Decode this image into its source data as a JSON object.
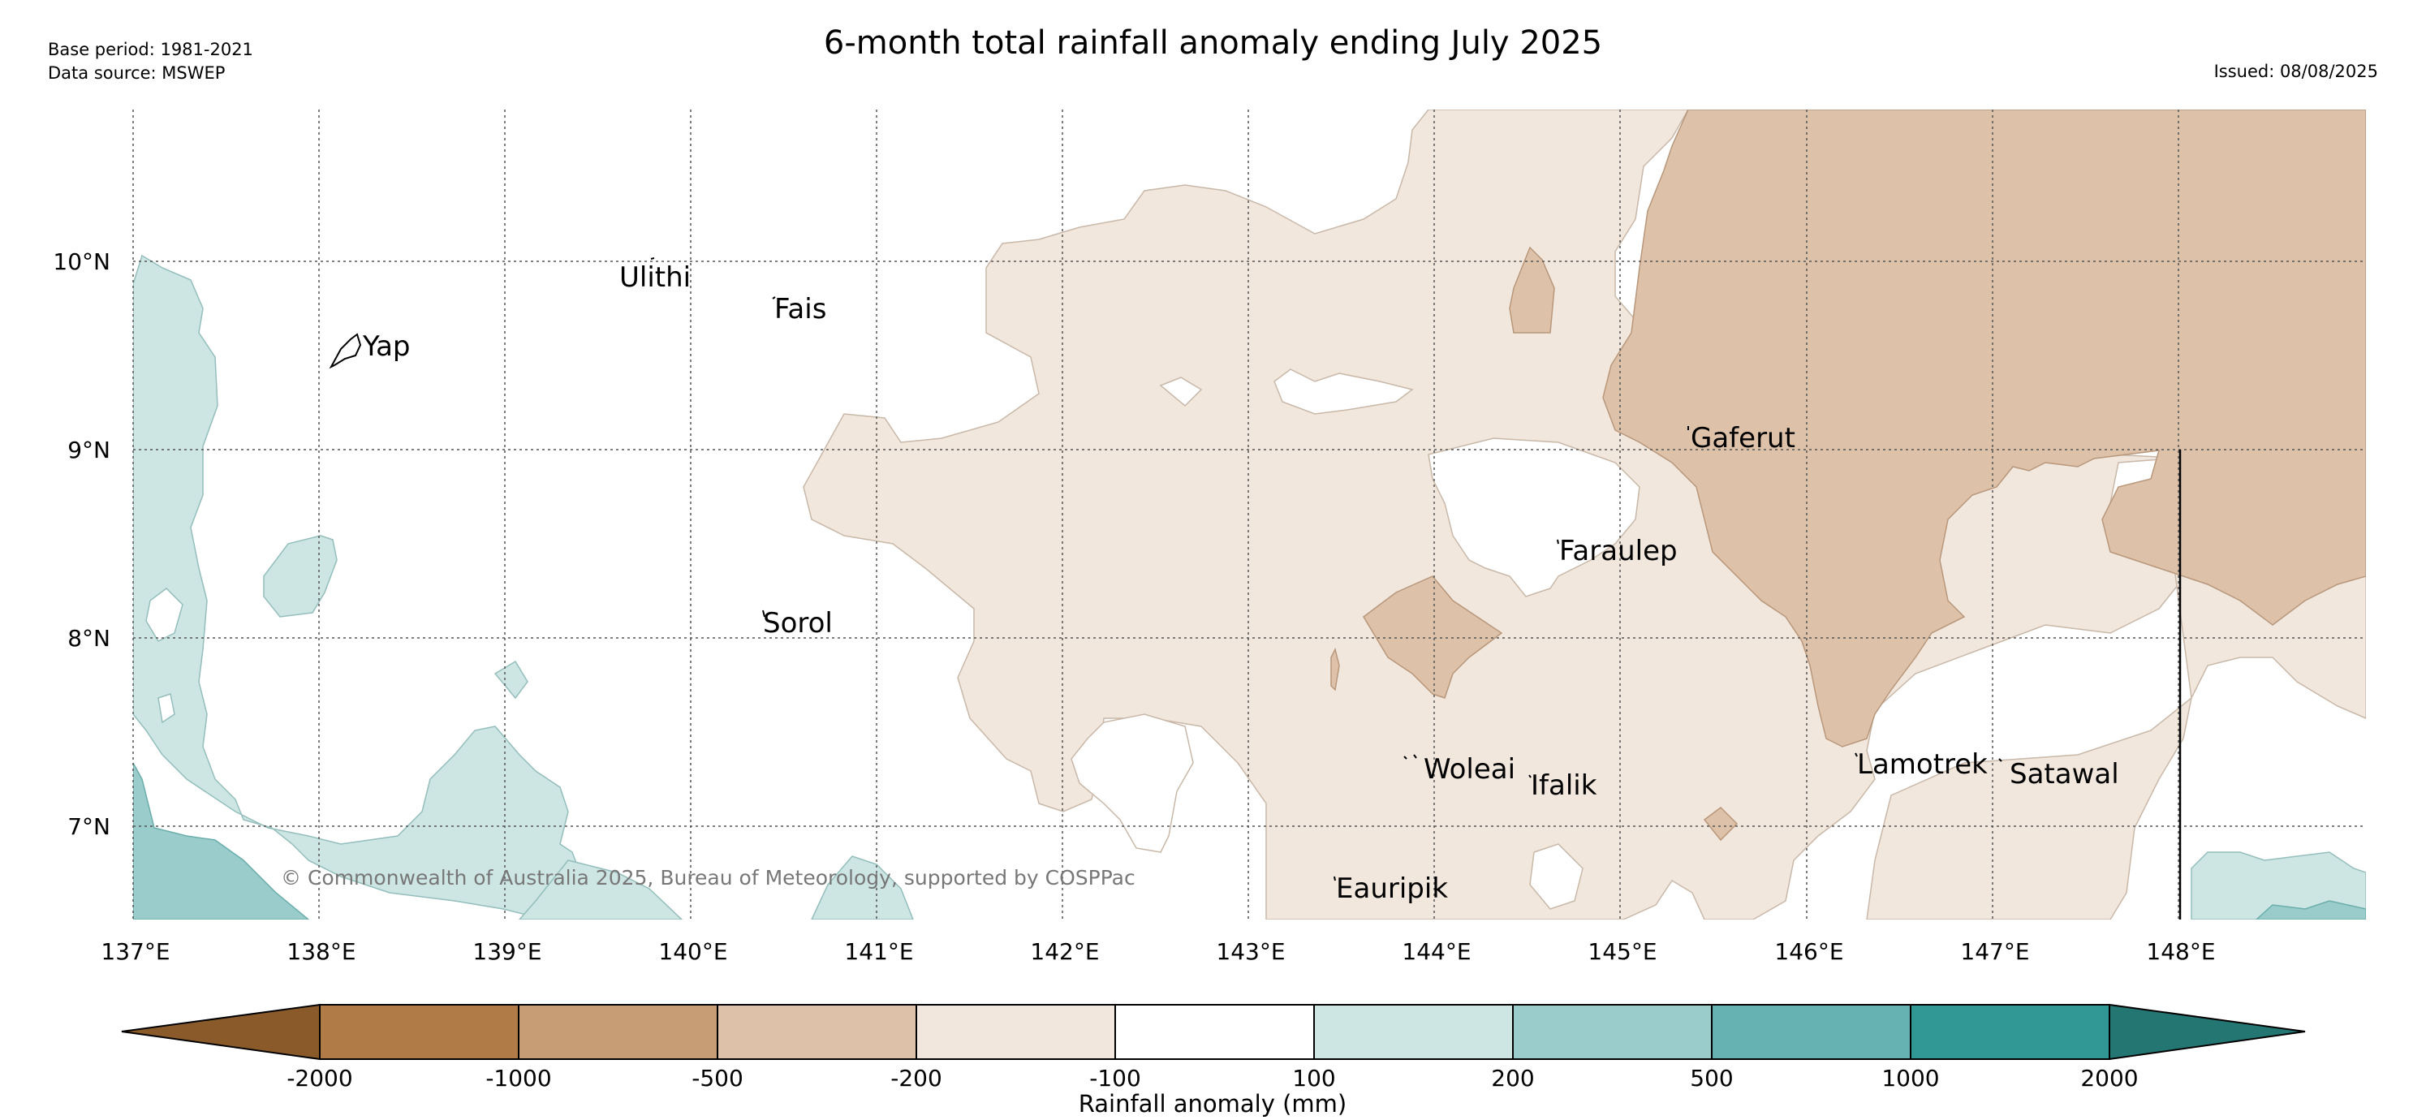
{
  "header": {
    "title": "6-month total rainfall anomaly ending July 2025",
    "base_period": "Base period: 1981-2021",
    "data_source": "Data source: MSWEP",
    "issued": "Issued: 08/08/2025"
  },
  "map": {
    "lon_labels": [
      "137°E",
      "138°E",
      "139°E",
      "140°E",
      "141°E",
      "142°E",
      "143°E",
      "144°E",
      "145°E",
      "146°E",
      "147°E",
      "148°E"
    ],
    "lat_labels": [
      "10°N",
      "9°N",
      "8°N",
      "7°N"
    ],
    "places": [
      "Yap",
      "Ulithi",
      "Fais",
      "Sorol",
      "Gaferut",
      "Faraulep",
      "Woleai",
      "Ifalik",
      "Lamotrek",
      "Satawal",
      "Eauripik"
    ],
    "copyright": "© Commonwealth of Australia 2025, Bureau of Meteorology, supported by COSPPac"
  },
  "legend": {
    "title": "Rainfall anomaly (mm)",
    "ticks": [
      "-2000",
      "-1000",
      "-500",
      "-200",
      "-100",
      "100",
      "200",
      "500",
      "1000",
      "2000"
    ],
    "colors": [
      "#8b5a2b",
      "#b07b46",
      "#c79d75",
      "#ddc2a9",
      "#f1e7dd",
      "#ffffff",
      "#cde6e4",
      "#99cccb",
      "#66b2b2",
      "#319895",
      "#247673"
    ]
  }
}
